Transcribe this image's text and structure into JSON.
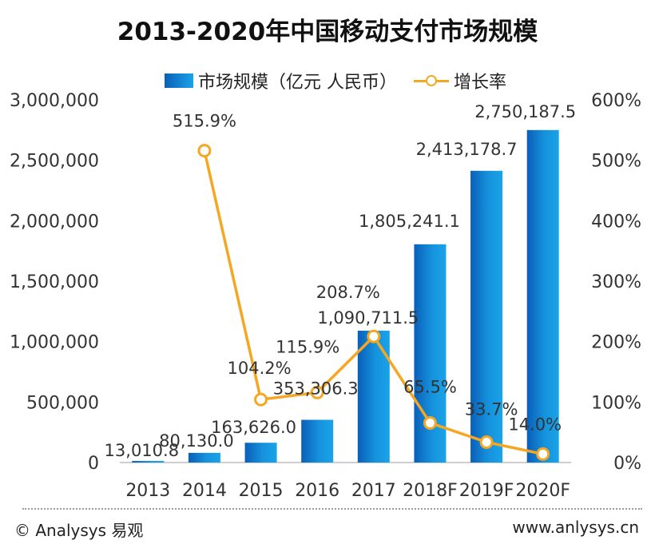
{
  "title": "2013-2020年中国移动支付市场规模",
  "legend": {
    "bar_label": "市场规模（亿元 人民币）",
    "line_label": "增长率"
  },
  "footer": {
    "left": "© Analysys 易观",
    "right": "www.anlysys.cn"
  },
  "colors": {
    "bar_dark": "#0a5fb8",
    "bar_light": "#1aa3e8",
    "line": "#f5a623"
  },
  "chart_data": {
    "type": "bar",
    "categories": [
      "2013",
      "2014",
      "2015",
      "2016",
      "2017",
      "2018F",
      "2019F",
      "2020F"
    ],
    "series": [
      {
        "name": "市场规模（亿元 人民币）",
        "type": "bar",
        "axis": "left",
        "values": [
          13010.8,
          80130.0,
          163626.0,
          353306.3,
          1090711.5,
          1805241.1,
          2413178.7,
          2750187.5
        ],
        "labels": [
          "13,010.8",
          "80,130.0",
          "163,626.0",
          "353,306.3",
          "1,090,711.5",
          "1,805,241.1",
          "2,413,178.7",
          "2,750,187.5"
        ]
      },
      {
        "name": "增长率",
        "type": "line",
        "axis": "right",
        "values": [
          null,
          515.9,
          104.2,
          115.9,
          208.7,
          65.5,
          33.7,
          14.0
        ],
        "labels": [
          "",
          "515.9%",
          "104.2%",
          "115.9%",
          "208.7%",
          "65.5%",
          "33.7%",
          "14.0%"
        ]
      }
    ],
    "y_left": {
      "range": [
        0,
        3000000
      ],
      "ticks": [
        0,
        500000,
        1000000,
        1500000,
        2000000,
        2500000,
        3000000
      ],
      "tick_labels": [
        "0",
        "500,000",
        "1,000,000",
        "1,500,000",
        "2,000,000",
        "2,500,000",
        "3,000,000"
      ]
    },
    "y_right": {
      "range": [
        0,
        600
      ],
      "ticks": [
        0,
        100,
        200,
        300,
        400,
        500,
        600
      ],
      "tick_labels": [
        "0%",
        "100%",
        "200%",
        "300%",
        "400%",
        "500%",
        "600%"
      ]
    },
    "grid": false,
    "legend_position": "top-center"
  }
}
